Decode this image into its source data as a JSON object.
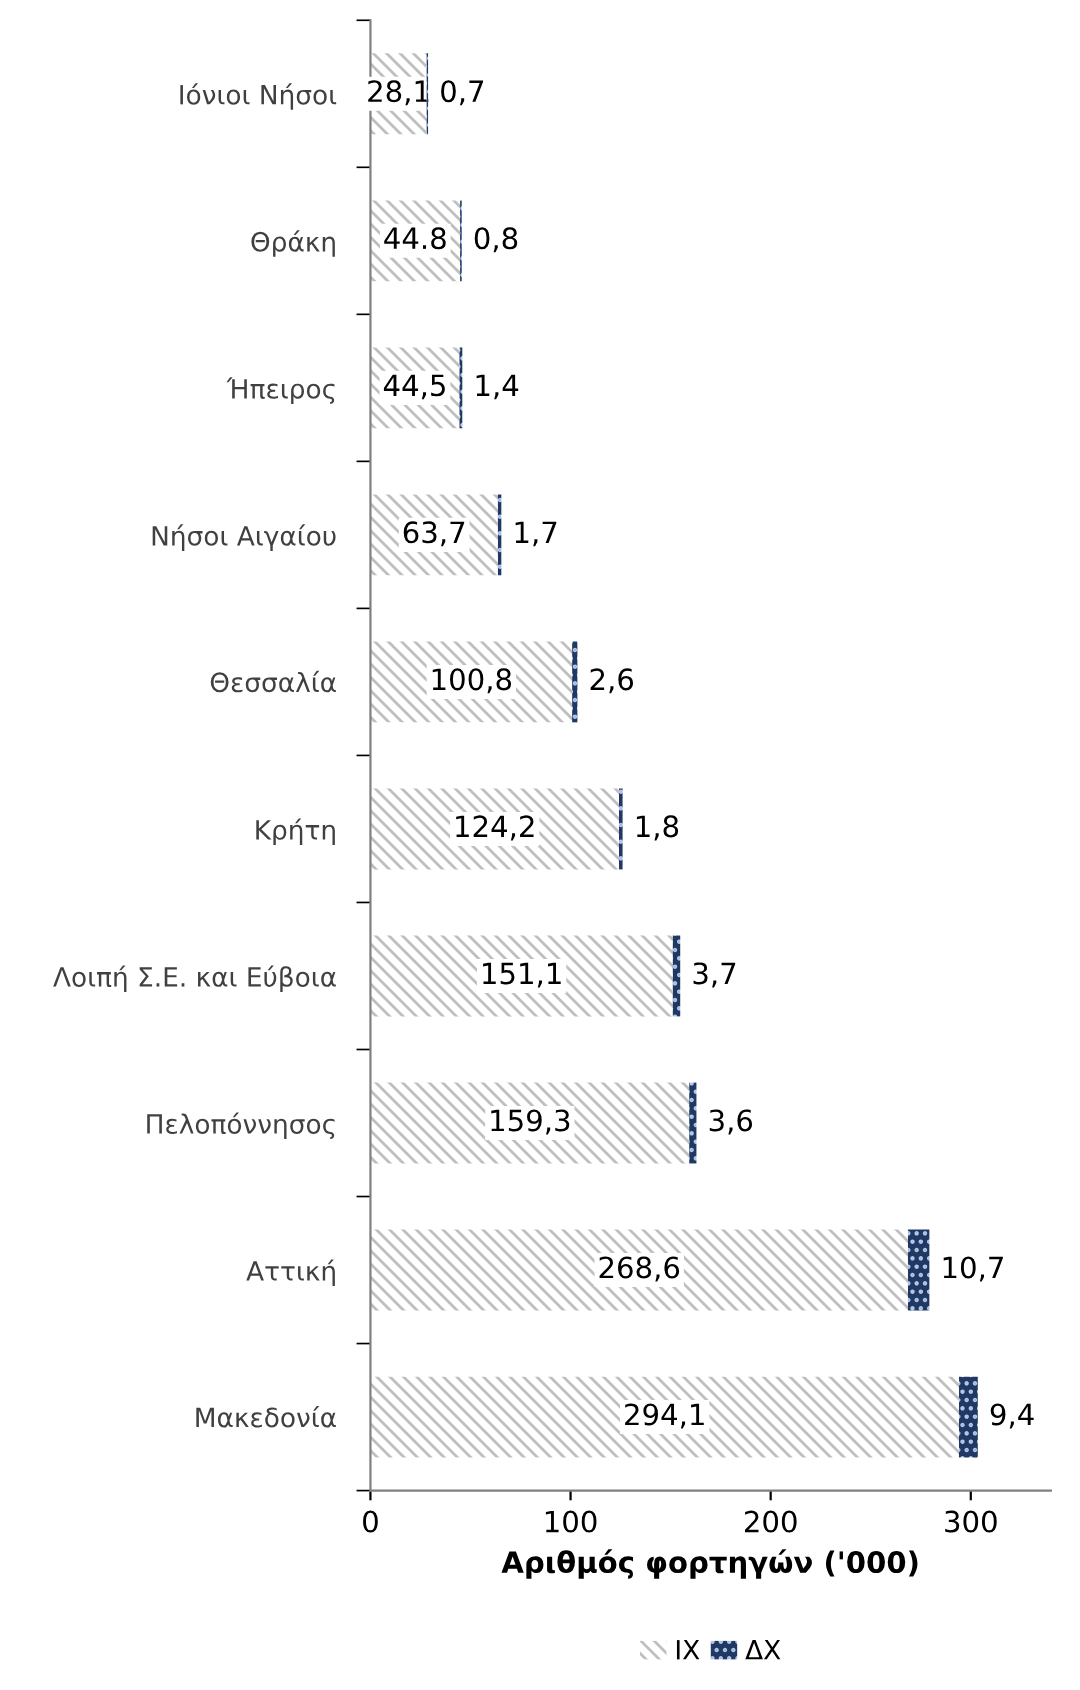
{
  "chart_data": {
    "type": "bar",
    "orientation": "horizontal",
    "stacked": true,
    "categories": [
      "Ιόνιοι Νήσοι",
      "Θράκη",
      "Ήπειρος",
      "Νήσοι Αιγαίου",
      "Θεσσαλία",
      "Κρήτη",
      "Λοιπή Σ.Ε. και Εύβοια",
      "Πελοπόννησος",
      "Αττική",
      "Μακεδονία"
    ],
    "series": [
      {
        "name": "ΙΧ",
        "color": "#bfbfbf",
        "values": [
          28.1,
          44.8,
          44.5,
          63.7,
          100.8,
          124.2,
          151.1,
          159.3,
          268.6,
          294.1
        ],
        "value_labels": [
          "28,1",
          "44.8",
          "44,5",
          "63,7",
          "100,8",
          "124,2",
          "151,1",
          "159,3",
          "268,6",
          "294,1"
        ]
      },
      {
        "name": "ΔΧ",
        "color": "#203864",
        "values": [
          0.7,
          0.8,
          1.4,
          1.7,
          2.6,
          1.8,
          3.7,
          3.6,
          10.7,
          9.4
        ],
        "value_labels": [
          "0,7",
          "0,8",
          "1,4",
          "1,7",
          "2,6",
          "1,8",
          "3,7",
          "3,6",
          "10,7",
          "9,4"
        ]
      }
    ],
    "xlabel": "Αριθμός φορτηγών ('000)",
    "xlim": [
      0,
      340
    ],
    "xticks": [
      0,
      100,
      200,
      300
    ],
    "legend": "bottom",
    "grid": false
  }
}
